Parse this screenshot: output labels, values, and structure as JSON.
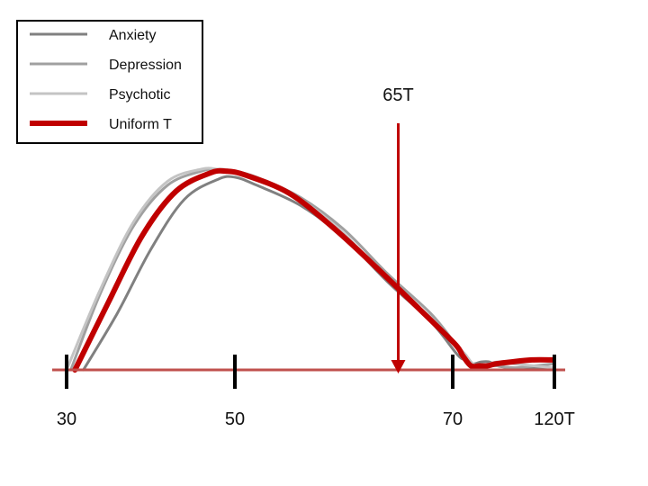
{
  "chart_data": {
    "type": "line",
    "title": "",
    "xlabel": "",
    "ylabel": "",
    "grid": false,
    "legend_position": "top-left",
    "tick_labels": [
      "30",
      "50",
      "70",
      "120T"
    ],
    "tick_values": [
      30,
      50,
      70,
      120
    ],
    "baseline_color": "#c0504d",
    "series": [
      {
        "name": "Anxiety",
        "color": "#808080",
        "x": [
          32,
          36,
          40,
          44,
          48,
          50,
          52,
          56,
          60,
          64,
          68,
          72,
          76,
          80,
          84,
          88,
          92,
          100,
          110,
          120
        ],
        "y": [
          0.0,
          0.28,
          0.6,
          0.85,
          0.95,
          0.96,
          0.92,
          0.82,
          0.66,
          0.44,
          0.24,
          0.08,
          0.05,
          0.03,
          0.04,
          0.04,
          0.02,
          0.01,
          0.01,
          0.01
        ]
      },
      {
        "name": "Depression",
        "color": "#a0a0a0",
        "x": [
          30.5,
          34,
          38,
          42,
          46,
          48,
          50,
          52,
          56,
          60,
          64,
          68,
          72,
          76,
          80,
          84,
          88,
          92,
          100,
          110,
          120
        ],
        "y": [
          0.0,
          0.38,
          0.72,
          0.92,
          0.99,
          1.0,
          0.99,
          0.96,
          0.86,
          0.7,
          0.48,
          0.28,
          0.12,
          0.07,
          0.03,
          0.02,
          0.02,
          0.02,
          0.01,
          0.02,
          0.03
        ]
      },
      {
        "name": "Psychotic",
        "color": "#c4c4c4",
        "x": [
          30,
          34,
          38,
          42,
          46,
          48,
          50,
          52,
          56,
          60,
          64,
          68,
          72,
          76,
          80,
          84,
          88,
          92,
          100,
          110,
          120
        ],
        "y": [
          0.0,
          0.4,
          0.74,
          0.94,
          1.0,
          1.0,
          0.99,
          0.95,
          0.85,
          0.68,
          0.45,
          0.26,
          0.12,
          0.08,
          0.03,
          0.02,
          0.03,
          0.04,
          0.03,
          0.02,
          0.01
        ]
      },
      {
        "name": "Uniform T",
        "color": "#c00000",
        "x": [
          31,
          35,
          39,
          43,
          47,
          49,
          51,
          55,
          59,
          63,
          67,
          71,
          75,
          79,
          83,
          87,
          91,
          99,
          109,
          119
        ],
        "y": [
          0.0,
          0.34,
          0.67,
          0.89,
          0.98,
          0.99,
          0.97,
          0.88,
          0.71,
          0.51,
          0.3,
          0.13,
          0.07,
          0.02,
          0.02,
          0.02,
          0.03,
          0.04,
          0.05,
          0.05
        ]
      }
    ],
    "marker": {
      "label": "65T",
      "value": 65,
      "color": "#c00000"
    }
  }
}
